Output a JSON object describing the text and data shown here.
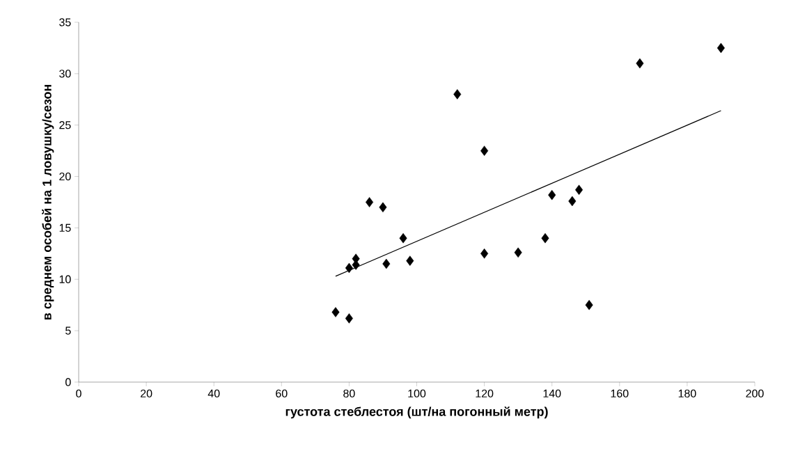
{
  "chart_data": {
    "type": "scatter",
    "xlabel": "густота стеблестоя (шт/на погонный метр)",
    "ylabel": "в среднем особей на 1 ловушку/сезон",
    "series": [
      {
        "color": "#000000",
        "marker": "diamond",
        "x": [
          76,
          80,
          80,
          82,
          82,
          86,
          90,
          91,
          96,
          98,
          112,
          120,
          120,
          130,
          138,
          140,
          146,
          148,
          151,
          166,
          190
        ],
        "values": [
          6.8,
          6.2,
          11.1,
          11.4,
          12.0,
          17.5,
          17.0,
          11.5,
          14.0,
          11.8,
          28.0,
          22.5,
          12.5,
          12.6,
          14.0,
          18.2,
          17.6,
          18.7,
          7.5,
          31.0,
          32.5
        ]
      },
      {
        "type": "line",
        "color": "#000000",
        "marker": "none",
        "x": [
          76,
          190
        ],
        "values": [
          10.3,
          26.4
        ]
      }
    ],
    "xlim": [
      0,
      200
    ],
    "ylim": [
      0,
      35
    ],
    "xticks": [
      0,
      20,
      40,
      60,
      80,
      100,
      120,
      140,
      160,
      180,
      200
    ],
    "yticks": [
      0,
      5,
      10,
      15,
      20,
      25,
      30,
      35
    ],
    "grid": false
  }
}
